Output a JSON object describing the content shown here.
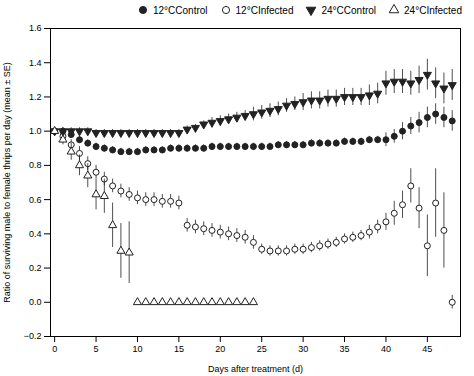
{
  "chart_data": {
    "type": "scatter",
    "xlabel": "Days after treatment (d)",
    "ylabel": "Ratio of surviving male to female thrips per day (mean ± SE)",
    "xlim": [
      -0.5,
      49
    ],
    "ylim": [
      -0.2,
      1.6
    ],
    "xticks": [
      0,
      5,
      10,
      15,
      20,
      25,
      30,
      35,
      40,
      45
    ],
    "yticks": [
      {
        "value": -0.2,
        "label": "−0.2"
      },
      {
        "value": 0.0,
        "label": "0.0"
      },
      {
        "value": 0.2,
        "label": "0.2"
      },
      {
        "value": 0.4,
        "label": "0.4"
      },
      {
        "value": 0.6,
        "label": "0.6"
      },
      {
        "value": 0.8,
        "label": "0.8"
      },
      {
        "value": 1.0,
        "label": "1.0"
      },
      {
        "value": 1.2,
        "label": "1.2"
      },
      {
        "value": 1.4,
        "label": "1.4"
      },
      {
        "value": 1.6,
        "label": "1.6"
      }
    ],
    "legend": "upper right",
    "series": [
      {
        "name": "12°CControl",
        "color": "#222222",
        "marker": "circle",
        "x": [
          0,
          1,
          2,
          3,
          4,
          5,
          6,
          7,
          8,
          9,
          10,
          11,
          12,
          13,
          14,
          15,
          16,
          17,
          18,
          19,
          20,
          21,
          22,
          23,
          24,
          25,
          26,
          27,
          28,
          29,
          30,
          31,
          32,
          33,
          34,
          35,
          36,
          37,
          38,
          39,
          40,
          41,
          42,
          43,
          44,
          45,
          46,
          47,
          48
        ],
        "values": [
          1.0,
          1.0,
          0.98,
          0.95,
          0.93,
          0.91,
          0.9,
          0.89,
          0.88,
          0.88,
          0.88,
          0.89,
          0.89,
          0.89,
          0.9,
          0.9,
          0.9,
          0.9,
          0.9,
          0.91,
          0.91,
          0.91,
          0.91,
          0.91,
          0.91,
          0.91,
          0.91,
          0.92,
          0.92,
          0.92,
          0.92,
          0.93,
          0.93,
          0.93,
          0.93,
          0.94,
          0.94,
          0.94,
          0.95,
          0.95,
          0.95,
          0.97,
          1.0,
          1.03,
          1.05,
          1.08,
          1.1,
          1.08,
          1.06
        ],
        "yerr": [
          0.02,
          0.02,
          0.02,
          0.02,
          0.02,
          0.02,
          0.02,
          0.02,
          0.02,
          0.02,
          0.02,
          0.02,
          0.02,
          0.02,
          0.02,
          0.02,
          0.02,
          0.02,
          0.02,
          0.02,
          0.02,
          0.02,
          0.02,
          0.02,
          0.02,
          0.02,
          0.02,
          0.02,
          0.02,
          0.02,
          0.02,
          0.02,
          0.02,
          0.02,
          0.02,
          0.02,
          0.02,
          0.02,
          0.02,
          0.02,
          0.04,
          0.04,
          0.05,
          0.05,
          0.06,
          0.06,
          0.06,
          0.06,
          0.06
        ]
      },
      {
        "name": "12°CInfected",
        "color": "#222222",
        "marker": "circle-open",
        "x": [
          0,
          1,
          2,
          3,
          4,
          5,
          6,
          7,
          8,
          9,
          10,
          11,
          12,
          13,
          14,
          15,
          16,
          17,
          18,
          19,
          20,
          21,
          22,
          23,
          24,
          25,
          26,
          27,
          28,
          29,
          30,
          31,
          32,
          33,
          34,
          35,
          36,
          37,
          38,
          39,
          40,
          41,
          42,
          43,
          44,
          45,
          46,
          47,
          48
        ],
        "values": [
          1.0,
          0.97,
          0.92,
          0.87,
          0.81,
          0.76,
          0.72,
          0.68,
          0.65,
          0.63,
          0.61,
          0.6,
          0.6,
          0.59,
          0.59,
          0.58,
          0.45,
          0.44,
          0.43,
          0.42,
          0.41,
          0.4,
          0.39,
          0.38,
          0.35,
          0.31,
          0.3,
          0.3,
          0.3,
          0.31,
          0.31,
          0.32,
          0.33,
          0.34,
          0.35,
          0.37,
          0.38,
          0.39,
          0.41,
          0.44,
          0.47,
          0.52,
          0.57,
          0.68,
          0.55,
          0.33,
          0.58,
          0.42,
          0.0
        ],
        "yerr": [
          0.02,
          0.03,
          0.03,
          0.04,
          0.04,
          0.04,
          0.04,
          0.04,
          0.04,
          0.04,
          0.04,
          0.04,
          0.04,
          0.04,
          0.04,
          0.04,
          0.04,
          0.04,
          0.04,
          0.04,
          0.04,
          0.04,
          0.04,
          0.04,
          0.04,
          0.03,
          0.03,
          0.03,
          0.03,
          0.03,
          0.03,
          0.03,
          0.03,
          0.03,
          0.03,
          0.03,
          0.03,
          0.03,
          0.04,
          0.04,
          0.05,
          0.07,
          0.08,
          0.1,
          0.12,
          0.18,
          0.2,
          0.22,
          0.04
        ]
      },
      {
        "name": "24°CControl",
        "color": "#222222",
        "marker": "triangle-down",
        "x": [
          0,
          1,
          2,
          3,
          4,
          5,
          6,
          7,
          8,
          9,
          10,
          11,
          12,
          13,
          14,
          15,
          16,
          17,
          18,
          19,
          20,
          21,
          22,
          23,
          24,
          25,
          26,
          27,
          28,
          29,
          30,
          31,
          32,
          33,
          34,
          35,
          36,
          37,
          38,
          39,
          40,
          41,
          42,
          43,
          44,
          45,
          46,
          47,
          48
        ],
        "values": [
          1.0,
          1.0,
          1.0,
          1.0,
          1.0,
          0.99,
          0.99,
          0.99,
          0.99,
          0.99,
          0.99,
          0.99,
          0.99,
          0.99,
          0.99,
          0.99,
          1.01,
          1.02,
          1.04,
          1.05,
          1.06,
          1.07,
          1.08,
          1.09,
          1.1,
          1.11,
          1.12,
          1.13,
          1.15,
          1.16,
          1.17,
          1.18,
          1.18,
          1.19,
          1.19,
          1.2,
          1.2,
          1.2,
          1.21,
          1.22,
          1.28,
          1.29,
          1.29,
          1.28,
          1.3,
          1.33,
          1.28,
          1.25,
          1.27
        ],
        "yerr": [
          0.02,
          0.02,
          0.02,
          0.02,
          0.02,
          0.02,
          0.02,
          0.02,
          0.02,
          0.02,
          0.02,
          0.02,
          0.02,
          0.02,
          0.02,
          0.02,
          0.02,
          0.02,
          0.02,
          0.03,
          0.03,
          0.03,
          0.03,
          0.03,
          0.04,
          0.04,
          0.04,
          0.04,
          0.04,
          0.04,
          0.05,
          0.05,
          0.05,
          0.05,
          0.05,
          0.05,
          0.05,
          0.05,
          0.06,
          0.06,
          0.07,
          0.07,
          0.07,
          0.07,
          0.08,
          0.09,
          0.09,
          0.09,
          0.09
        ]
      },
      {
        "name": "24°CInfected",
        "color": "#222222",
        "marker": "triangle-up-open",
        "x": [
          0,
          1,
          2,
          3,
          4,
          5,
          6,
          7,
          8,
          9,
          10,
          11,
          12,
          13,
          14,
          15,
          16,
          17,
          18,
          19,
          20,
          21,
          22,
          23,
          24
        ],
        "values": [
          1.0,
          0.95,
          0.88,
          0.8,
          0.74,
          0.63,
          0.62,
          0.45,
          0.3,
          0.29,
          0.0,
          0.0,
          0.0,
          0.0,
          0.0,
          0.0,
          0.0,
          0.0,
          0.0,
          0.0,
          0.0,
          0.0,
          0.0,
          0.0,
          0.0
        ],
        "yerr": [
          0.02,
          0.03,
          0.05,
          0.06,
          0.07,
          0.09,
          0.1,
          0.13,
          0.16,
          0.18,
          0.0,
          0.0,
          0.0,
          0.0,
          0.0,
          0.0,
          0.0,
          0.0,
          0.0,
          0.0,
          0.0,
          0.0,
          0.0,
          0.0,
          0.0
        ]
      }
    ]
  }
}
